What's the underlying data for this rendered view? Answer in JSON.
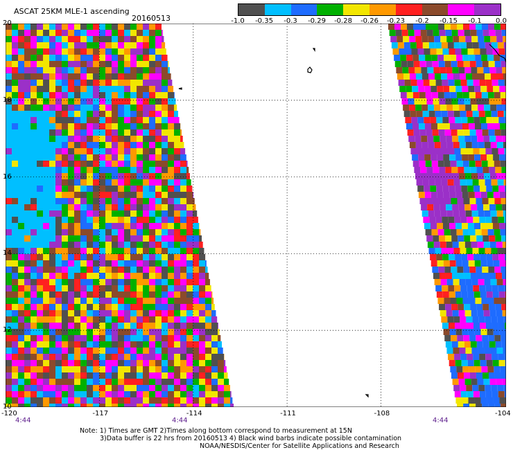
{
  "header": {
    "product_title": "ASCAT 25KM MLE-1 ascending",
    "date": "20160513"
  },
  "colorbar": {
    "labels": [
      "-1.0",
      "-0.35",
      "-0.3",
      "-0.29",
      "-0.28",
      "-0.26",
      "-0.23",
      "-0.2",
      "-0.15",
      "-0.1",
      "0.0"
    ],
    "colors": [
      "#505050",
      "#00bfff",
      "#1e6cff",
      "#00b000",
      "#f2e600",
      "#ff9900",
      "#ff2020",
      "#8b4a2b",
      "#ff00ff",
      "#9b30c8"
    ]
  },
  "axes": {
    "lat_labels": [
      "20",
      "18",
      "16",
      "14",
      "12",
      "10"
    ],
    "lon_labels": [
      "-120",
      "-117",
      "-114",
      "-111",
      "-108",
      "-104"
    ],
    "lat_range": [
      10,
      20
    ],
    "lon_range": [
      -120,
      -104
    ],
    "grid_style": "dotted"
  },
  "time_labels": [
    "4:44",
    "4:44",
    "4:44"
  ],
  "notes": {
    "line1": "Note: 1) Times are GMT 2)Times along bottom correspond to measurement at 15N",
    "line2": "3)Data buffer is 22 hrs from 20160513 4) Black wind barbs indicate possible contamination",
    "line3": "NOAA/NESDIS/Center for Satellite Applications and Research"
  }
}
